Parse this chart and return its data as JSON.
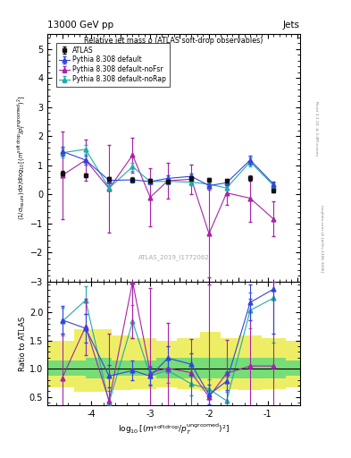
{
  "title_top": "13000 GeV pp",
  "title_right": "Jets",
  "panel_title": "Relative jet mass ρ (ATLAS soft-drop observables)",
  "watermark": "ATLAS_2019_I1772062",
  "right_label": "mcplots.cern.ch [arXiv:1306.3436]",
  "right_label2": "Rivet 3.1.10, ≥ 3.4M events",
  "ylabel_ratio": "Ratio to ATLAS",
  "ylim_main": [
    -3.0,
    5.5
  ],
  "ylim_ratio": [
    0.35,
    2.55
  ],
  "yticks_main": [
    -3,
    -2,
    -1,
    0,
    1,
    2,
    3,
    4,
    5
  ],
  "yticks_ratio": [
    0.5,
    1.0,
    1.5,
    2.0
  ],
  "xlim": [
    -4.75,
    -0.45
  ],
  "xticks": [
    -4.0,
    -3.0,
    -2.0,
    -1.0
  ],
  "xvals": [
    -4.5,
    -4.1,
    -3.7,
    -3.3,
    -3.0,
    -2.7,
    -2.3,
    -2.0,
    -1.7,
    -1.3,
    -0.9
  ],
  "atlas_y": [
    0.73,
    0.65,
    0.53,
    0.5,
    0.47,
    0.45,
    0.55,
    0.5,
    0.48,
    0.55,
    0.13
  ],
  "atlas_yerr": [
    0.07,
    0.07,
    0.06,
    0.05,
    0.05,
    0.06,
    0.07,
    0.05,
    0.05,
    0.08,
    0.05
  ],
  "pythia_default_y": [
    1.48,
    1.18,
    0.48,
    0.5,
    0.44,
    0.55,
    0.62,
    0.3,
    0.4,
    1.18,
    0.35
  ],
  "pythia_default_yerr": [
    0.15,
    0.15,
    0.1,
    0.08,
    0.07,
    0.09,
    0.1,
    0.08,
    0.07,
    0.15,
    0.1
  ],
  "pythia_noFsr_y": [
    0.65,
    1.18,
    0.2,
    1.35,
    -0.1,
    0.47,
    0.52,
    -1.35,
    0.05,
    -0.13,
    -0.85
  ],
  "pythia_noFsr_yerr": [
    1.5,
    0.7,
    1.5,
    0.6,
    1.0,
    0.6,
    0.5,
    1.5,
    0.4,
    0.8,
    0.6
  ],
  "pythia_noRap_y": [
    1.43,
    1.55,
    0.22,
    0.95,
    0.44,
    0.45,
    0.42,
    0.35,
    0.22,
    1.12,
    0.3
  ],
  "pythia_noRap_yerr": [
    0.15,
    0.15,
    0.1,
    0.15,
    0.08,
    0.09,
    0.1,
    0.08,
    0.07,
    0.15,
    0.1
  ],
  "color_atlas": "#111111",
  "color_default": "#3344dd",
  "color_noFsr": "#aa22aa",
  "color_noRap": "#22aaaa",
  "band_inner_color": "#77dd77",
  "band_outer_color": "#eeee66",
  "ratio_default": [
    1.87,
    1.72,
    0.87,
    0.97,
    0.87,
    1.19,
    1.08,
    0.54,
    0.78,
    2.18,
    2.42
  ],
  "ratio_default_err": [
    0.25,
    0.25,
    0.2,
    0.18,
    0.16,
    0.22,
    0.2,
    0.18,
    0.16,
    0.32,
    0.8
  ],
  "ratio_noFsr": [
    0.83,
    1.75,
    0.43,
    2.55,
    0.93,
    1.01,
    0.93,
    0.5,
    0.92,
    1.05,
    1.05
  ],
  "ratio_noFsr_err": [
    0.8,
    0.5,
    1.2,
    1.0,
    1.5,
    0.8,
    0.6,
    2.0,
    0.6,
    1.2,
    1.5
  ],
  "ratio_noRap": [
    1.84,
    2.22,
    0.4,
    1.84,
    0.88,
    0.97,
    0.73,
    0.64,
    0.43,
    2.04,
    2.26
  ],
  "ratio_noRap_err": [
    0.25,
    0.25,
    0.2,
    0.3,
    0.18,
    0.22,
    0.2,
    0.18,
    0.16,
    0.32,
    0.8
  ],
  "band_x": [
    -4.75,
    -4.3,
    -4.1,
    -3.65,
    -3.3,
    -2.9,
    -2.55,
    -2.15,
    -1.8,
    -1.5,
    -1.1,
    -0.7,
    -0.45
  ],
  "band_inner": [
    1.15,
    1.15,
    1.2,
    1.15,
    1.15,
    1.2,
    1.2,
    1.2,
    1.2,
    1.2,
    1.2,
    1.15,
    1.15
  ],
  "band_outer": [
    1.5,
    1.7,
    1.7,
    1.6,
    1.55,
    1.5,
    1.55,
    1.65,
    1.55,
    1.6,
    1.55,
    1.5,
    1.5
  ]
}
